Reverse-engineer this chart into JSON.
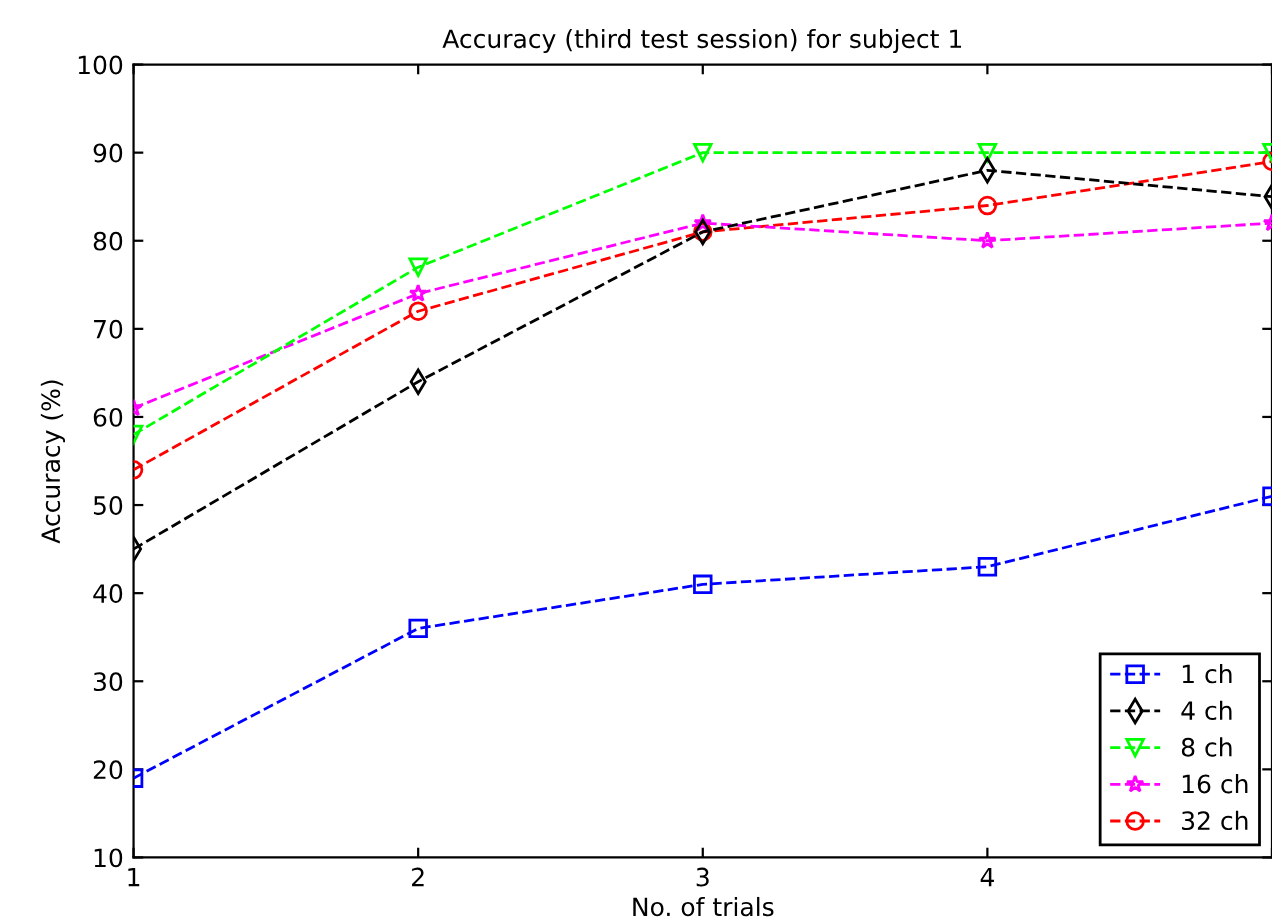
{
  "chart_data": {
    "type": "line",
    "title": "Accuracy (third test session) for subject 1",
    "xlabel": "No. of trials",
    "ylabel": "Accuracy (%)",
    "x": [
      1,
      2,
      3,
      4,
      5
    ],
    "xlim": [
      1,
      5
    ],
    "xticks": [
      1,
      2,
      3,
      4,
      {
        "value": 5,
        "label": null
      }
    ],
    "ylim": [
      10,
      100
    ],
    "yticks": [
      10,
      20,
      30,
      40,
      50,
      60,
      70,
      80,
      90,
      100
    ],
    "grid": false,
    "legend": "bottom right",
    "line_style": "dashed",
    "series": [
      {
        "name": "1 ch",
        "color": "#0000ff",
        "marker": "square",
        "values": [
          19,
          36,
          41,
          43,
          51
        ]
      },
      {
        "name": "4 ch",
        "color": "#000000",
        "marker": "diamond",
        "values": [
          45,
          64,
          81,
          88,
          85
        ]
      },
      {
        "name": "8 ch",
        "color": "#00ff00",
        "marker": "triangle",
        "values": [
          58,
          77,
          90,
          90,
          90
        ]
      },
      {
        "name": "16 ch",
        "color": "#ff00ff",
        "marker": "star",
        "values": [
          61,
          74,
          82,
          80,
          82
        ]
      },
      {
        "name": "32 ch",
        "color": "#ff0000",
        "marker": "circle",
        "values": [
          54,
          72,
          81,
          84,
          89
        ]
      }
    ]
  }
}
